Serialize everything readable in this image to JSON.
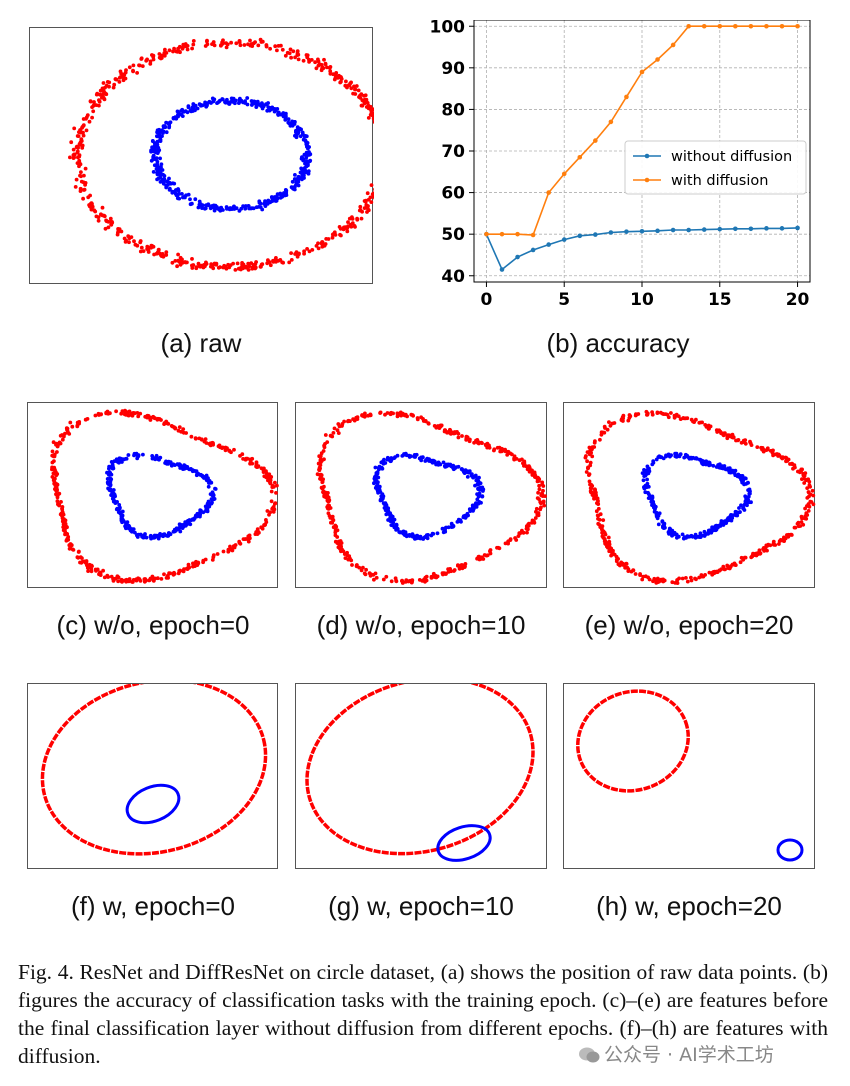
{
  "panels": {
    "a": {
      "label": "(a) raw"
    },
    "b": {
      "label": "(b) accuracy"
    },
    "c": {
      "label": "(c) w/o, epoch=0"
    },
    "d": {
      "label": "(d) w/o, epoch=10"
    },
    "e": {
      "label": "(e) w/o, epoch=20"
    },
    "f": {
      "label": "(f) w, epoch=0"
    },
    "g": {
      "label": "(g) w, epoch=10"
    },
    "h": {
      "label": "(h) w, epoch=20"
    }
  },
  "colors": {
    "outer": "#ff0000",
    "inner": "#0000ff",
    "without": "#1f77b4",
    "with": "#ff7f0e"
  },
  "chart_data": {
    "type": "line",
    "x": [
      0,
      1,
      2,
      3,
      4,
      5,
      6,
      7,
      8,
      9,
      10,
      11,
      12,
      13,
      14,
      15,
      16,
      17,
      18,
      19,
      20
    ],
    "series": [
      {
        "name": "without diffusion",
        "values": [
          50,
          41.5,
          44.5,
          46.2,
          47.5,
          48.7,
          49.6,
          49.9,
          50.4,
          50.6,
          50.7,
          50.8,
          51,
          51,
          51.1,
          51.2,
          51.3,
          51.3,
          51.4,
          51.4,
          51.5
        ]
      },
      {
        "name": "with diffusion",
        "values": [
          50,
          50,
          50,
          49.8,
          60,
          64.5,
          68.5,
          72.5,
          77,
          83,
          89,
          92,
          95.5,
          100,
          100,
          100,
          100,
          100,
          100,
          100,
          100
        ]
      }
    ],
    "xticks": [
      0,
      5,
      10,
      15,
      20
    ],
    "yticks": [
      40,
      50,
      60,
      70,
      80,
      90,
      100
    ],
    "xlim": [
      -0.8,
      20.8
    ],
    "ylim": [
      38.5,
      101.5
    ],
    "grid": true,
    "legend": "center-right"
  },
  "figure_caption": "Fig. 4.    ResNet and DiffResNet on circle dataset, (a) shows the position of raw data points. (b) figures the accuracy of classification tasks with the training epoch. (c)–(e) are features before the final classification layer without diffusion from different epochs. (f)–(h) are features with diffusion.",
  "watermark": "公众号 · AI学术工坊"
}
